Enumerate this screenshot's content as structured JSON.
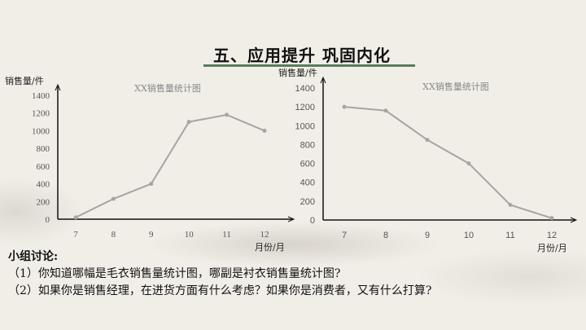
{
  "slide": {
    "title": "五、应用提升  巩固内化",
    "discussion_heading": "小组讨论:",
    "questions": [
      "（1）你知道哪幅是毛衣销售量统计图，哪副是衬衣销售量统计图?",
      "（2）如果你是销售经理，在进货方面有什么考虑？如果你是消费者，又有什么打算?"
    ]
  },
  "chart_data": [
    {
      "type": "line",
      "title": "XX销售量统计图",
      "xlabel": "月份/月",
      "ylabel": "销售量/件",
      "categories": [
        "7",
        "8",
        "9",
        "10",
        "11",
        "12"
      ],
      "values": [
        20,
        230,
        400,
        1100,
        1180,
        1000
      ],
      "yticks": [
        0,
        200,
        400,
        600,
        800,
        1000,
        1200,
        1400
      ],
      "ylim": [
        0,
        1400
      ],
      "grid": false,
      "line_color": "#a8a4a0"
    },
    {
      "type": "line",
      "title": "XX销售量统计图",
      "xlabel": "月份/月",
      "ylabel": "销售量/件",
      "categories": [
        "7",
        "8",
        "9",
        "10",
        "11",
        "12"
      ],
      "values": [
        1200,
        1160,
        850,
        600,
        160,
        20
      ],
      "yticks": [
        0,
        200,
        400,
        600,
        800,
        1000,
        1200,
        1400
      ],
      "ylim": [
        0,
        1400
      ],
      "grid": false,
      "line_color": "#a8a4a0"
    }
  ]
}
